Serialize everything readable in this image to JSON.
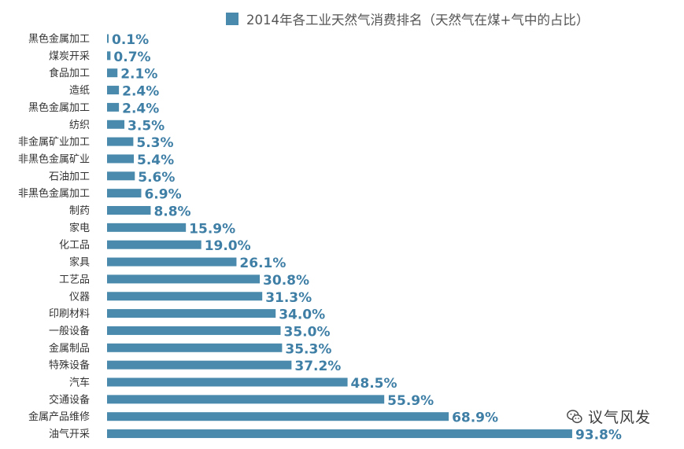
{
  "chart_data": {
    "type": "bar",
    "orientation": "horizontal",
    "legend_position": "top-right",
    "grid": false,
    "bar_color": "#4a8bad",
    "label_color": "#3f7fa6",
    "xlim": [
      0,
      100
    ],
    "categories": [
      "黑色金属加工",
      "煤炭开采",
      "食品加工",
      "造纸",
      "黑色金属加工",
      "纺织",
      "非金属矿业加工",
      "非黑色金属矿业",
      "石油加工",
      "非黑色金属加工",
      "制药",
      "家电",
      "化工品",
      "家具",
      "工艺品",
      "仪器",
      "印刷材料",
      "一般设备",
      "金属制品",
      "特殊设备",
      "汽车",
      "交通设备",
      "金属产品维修",
      "油气开采"
    ],
    "series": [
      {
        "name": "2014年各工业天然气消费排名（天然气在煤+气中的占比）",
        "values": [
          0.1,
          0.7,
          2.1,
          2.4,
          2.4,
          3.5,
          5.3,
          5.4,
          5.6,
          6.9,
          8.8,
          15.9,
          19.0,
          26.1,
          30.8,
          31.3,
          34.0,
          35.0,
          35.3,
          37.2,
          48.5,
          55.9,
          68.9,
          93.8
        ],
        "labels": [
          "0.1%",
          "0.7%",
          "2.1%",
          "2.4%",
          "2.4%",
          "3.5%",
          "5.3%",
          "5.4%",
          "5.6%",
          "6.9%",
          "8.8%",
          "15.9%",
          "19.0%",
          "26.1%",
          "30.8%",
          "31.3%",
          "34.0%",
          "35.0%",
          "35.3%",
          "37.2%",
          "48.5%",
          "55.9%",
          "68.9%",
          "93.8%"
        ]
      }
    ]
  },
  "watermark": {
    "text": "议气风发",
    "icon": "wechat-icon"
  }
}
